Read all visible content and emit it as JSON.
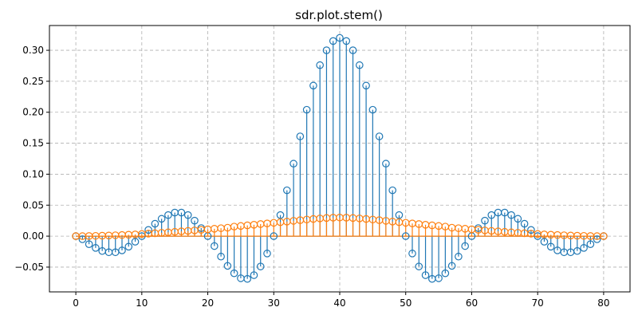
{
  "chart_data": {
    "type": "stem",
    "title": "sdr.plot.stem()",
    "xlabel": "",
    "ylabel": "",
    "xlim": [
      -4,
      84
    ],
    "ylim": [
      -0.09,
      0.34
    ],
    "xticks": [
      0,
      10,
      20,
      30,
      40,
      50,
      60,
      70,
      80
    ],
    "yticks": [
      -0.05,
      0.0,
      0.05,
      0.1,
      0.15,
      0.2,
      0.25,
      0.3
    ],
    "ytick_labels": [
      "−0.05",
      "0.00",
      "0.05",
      "0.10",
      "0.15",
      "0.20",
      "0.25",
      "0.30"
    ],
    "grid": true,
    "legend": false,
    "series": [
      {
        "color": "#1f77b4",
        "x": [
          0,
          1,
          2,
          3,
          4,
          5,
          6,
          7,
          8,
          9,
          10,
          11,
          12,
          13,
          14,
          15,
          16,
          17,
          18,
          19,
          20,
          21,
          22,
          23,
          24,
          25,
          26,
          27,
          28,
          29,
          30,
          31,
          32,
          33,
          34,
          35,
          36,
          37,
          38,
          39,
          40,
          41,
          42,
          43,
          44,
          45,
          46,
          47,
          48,
          49,
          50,
          51,
          52,
          53,
          54,
          55,
          56,
          57,
          58,
          59,
          60,
          61,
          62,
          63,
          64,
          65,
          66,
          67,
          68,
          69,
          70,
          71,
          72,
          73,
          74,
          75,
          76,
          77,
          78,
          79,
          80
        ],
        "values": [
          0.0,
          -0.005,
          -0.013,
          -0.019,
          -0.024,
          -0.026,
          -0.026,
          -0.023,
          -0.017,
          -0.009,
          0.0,
          0.01,
          0.02,
          0.028,
          0.034,
          0.038,
          0.038,
          0.034,
          0.025,
          0.013,
          0.0,
          -0.016,
          -0.033,
          -0.048,
          -0.06,
          -0.068,
          -0.069,
          -0.063,
          -0.049,
          -0.028,
          0.0,
          0.034,
          0.074,
          0.117,
          0.161,
          0.204,
          0.243,
          0.276,
          0.3,
          0.315,
          0.32,
          0.315,
          0.3,
          0.276,
          0.243,
          0.204,
          0.161,
          0.117,
          0.074,
          0.034,
          0.0,
          -0.028,
          -0.049,
          -0.063,
          -0.069,
          -0.068,
          -0.06,
          -0.048,
          -0.033,
          -0.016,
          0.0,
          0.013,
          0.025,
          0.034,
          0.038,
          0.038,
          0.034,
          0.028,
          0.02,
          0.01,
          0.0,
          -0.009,
          -0.017,
          -0.023,
          -0.026,
          -0.026,
          -0.024,
          -0.019,
          -0.013,
          -0.005,
          0.0
        ]
      },
      {
        "color": "#ff7f0e",
        "x": [
          0,
          1,
          2,
          3,
          4,
          5,
          6,
          7,
          8,
          9,
          10,
          11,
          12,
          13,
          14,
          15,
          16,
          17,
          18,
          19,
          20,
          21,
          22,
          23,
          24,
          25,
          26,
          27,
          28,
          29,
          30,
          31,
          32,
          33,
          34,
          35,
          36,
          37,
          38,
          39,
          40,
          41,
          42,
          43,
          44,
          45,
          46,
          47,
          48,
          49,
          50,
          51,
          52,
          53,
          54,
          55,
          56,
          57,
          58,
          59,
          60,
          61,
          62,
          63,
          64,
          65,
          66,
          67,
          68,
          69,
          70,
          71,
          72,
          73,
          74,
          75,
          76,
          77,
          78,
          79,
          80
        ],
        "values": [
          0.0,
          0.0,
          0.0002,
          0.0004,
          0.0007,
          0.001,
          0.0014,
          0.0018,
          0.0023,
          0.0028,
          0.0034,
          0.004,
          0.0047,
          0.0054,
          0.0061,
          0.0069,
          0.0077,
          0.0085,
          0.0093,
          0.0102,
          0.011,
          0.0119,
          0.0128,
          0.0136,
          0.0154,
          0.0164,
          0.0174,
          0.0184,
          0.0195,
          0.0205,
          0.0215,
          0.0225,
          0.0235,
          0.0247,
          0.0258,
          0.0268,
          0.0277,
          0.0286,
          0.0293,
          0.0298,
          0.03,
          0.0298,
          0.0293,
          0.0286,
          0.0277,
          0.0268,
          0.0258,
          0.0247,
          0.0235,
          0.0225,
          0.0215,
          0.0205,
          0.0195,
          0.0184,
          0.0174,
          0.0164,
          0.0154,
          0.0136,
          0.0128,
          0.0119,
          0.011,
          0.0102,
          0.0093,
          0.0085,
          0.0077,
          0.0069,
          0.0061,
          0.0054,
          0.0047,
          0.004,
          0.0034,
          0.0028,
          0.0023,
          0.0018,
          0.0014,
          0.001,
          0.0007,
          0.0004,
          0.0002,
          0.0,
          0.0
        ]
      }
    ]
  }
}
